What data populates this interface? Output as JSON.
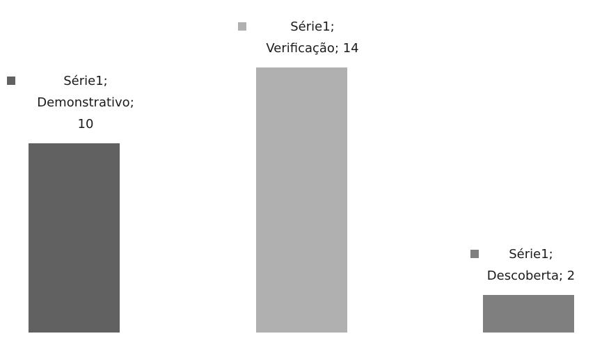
{
  "chart_data": {
    "type": "bar",
    "categories": [
      "Demonstrativo",
      "Verificação",
      "Descoberta"
    ],
    "series": [
      {
        "name": "Série1",
        "values": [
          10,
          14,
          2
        ]
      }
    ],
    "colors": [
      "#616161",
      "#b0b0b0",
      "#7f7f7f"
    ],
    "data_labels": [
      {
        "lines": [
          "Série1;",
          "Demonstrativo;",
          "10"
        ]
      },
      {
        "lines": [
          "Série1;",
          "Verificação; 14"
        ]
      },
      {
        "lines": [
          "Série1;",
          "Descoberta; 2"
        ]
      }
    ],
    "show_legend_key_in_labels": true,
    "grid": false,
    "axes_visible": false
  }
}
